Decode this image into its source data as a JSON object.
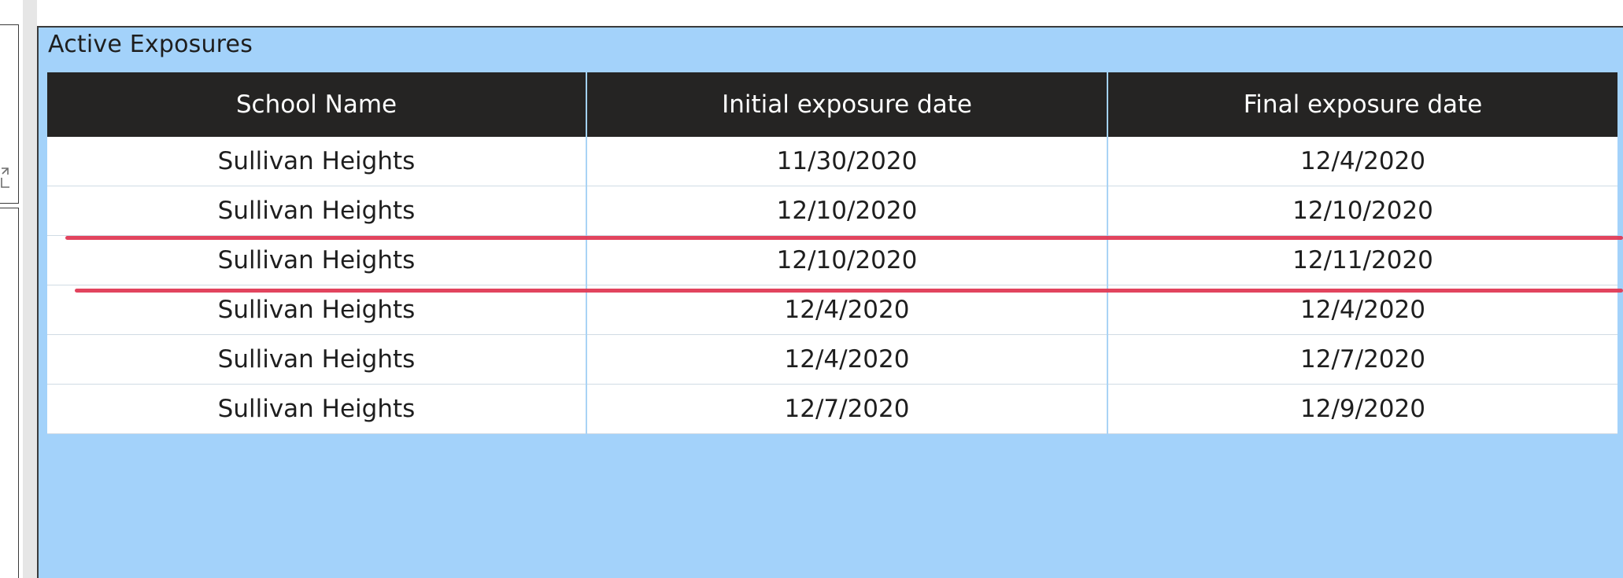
{
  "visual": {
    "title": "Active Exposures"
  },
  "table": {
    "columns": [
      "School Name",
      "Initial exposure date",
      "Final exposure date"
    ],
    "rows": [
      [
        "Sullivan Heights",
        "11/30/2020",
        "12/4/2020"
      ],
      [
        "Sullivan Heights",
        "12/10/2020",
        "12/10/2020"
      ],
      [
        "Sullivan Heights",
        "12/10/2020",
        "12/11/2020"
      ],
      [
        "Sullivan Heights",
        "12/4/2020",
        "12/4/2020"
      ],
      [
        "Sullivan Heights",
        "12/4/2020",
        "12/7/2020"
      ],
      [
        "Sullivan Heights",
        "12/7/2020",
        "12/9/2020"
      ]
    ]
  },
  "annotation": {
    "highlighted_row": 3,
    "color": "#e03a55"
  },
  "icons": {
    "focus_mode": "focus-mode-icon"
  },
  "colors": {
    "visual_background": "#a3d2fa",
    "header_background": "#252423",
    "header_text": "#ffffff"
  }
}
